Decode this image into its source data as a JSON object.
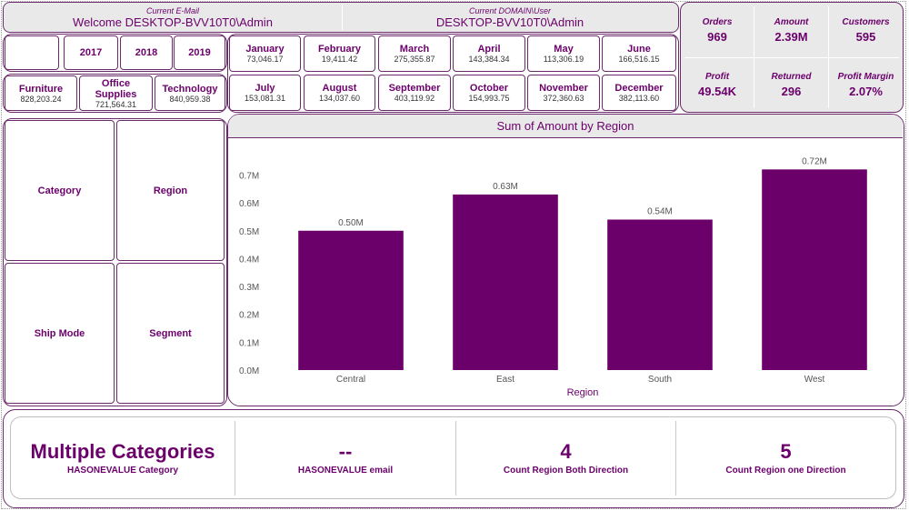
{
  "header": {
    "email_label": "Current E-Mail",
    "email_value": "Welcome DESKTOP-BVV10T0\\Admin",
    "domain_label": "Current DOMAIN\\User",
    "domain_value": "DESKTOP-BVV10T0\\Admin"
  },
  "years": [
    "",
    "2017",
    "2018",
    "2019"
  ],
  "categories": [
    {
      "name": "Furniture",
      "value": "828,203.24"
    },
    {
      "name": "Office Supplies",
      "value": "721,564.31"
    },
    {
      "name": "Technology",
      "value": "840,959.38"
    }
  ],
  "months": [
    {
      "name": "January",
      "value": "73,046.17"
    },
    {
      "name": "February",
      "value": "19,411.42"
    },
    {
      "name": "March",
      "value": "275,355.87"
    },
    {
      "name": "April",
      "value": "143,384.34"
    },
    {
      "name": "May",
      "value": "113,306.19"
    },
    {
      "name": "June",
      "value": "166,516.15"
    },
    {
      "name": "July",
      "value": "153,081.31"
    },
    {
      "name": "August",
      "value": "134,037.60"
    },
    {
      "name": "September",
      "value": "403,119.92"
    },
    {
      "name": "October",
      "value": "154,993.75"
    },
    {
      "name": "November",
      "value": "372,360.63"
    },
    {
      "name": "December",
      "value": "382,113.60"
    }
  ],
  "kpis": [
    {
      "title": "Orders",
      "value": "969"
    },
    {
      "title": "Amount",
      "value": "2.39M"
    },
    {
      "title": "Customers",
      "value": "595"
    },
    {
      "title": "Profit",
      "value": "49.54K"
    },
    {
      "title": "Returned",
      "value": "296"
    },
    {
      "title": "Profit Margin",
      "value": "2.07%"
    }
  ],
  "slicers": [
    "Category",
    "Region",
    "Ship Mode",
    "Segment"
  ],
  "bottom_cards": [
    {
      "value": "Multiple Categories",
      "label": "HASONEVALUE Category"
    },
    {
      "value": "--",
      "label": "HASONEVALUE email"
    },
    {
      "value": "4",
      "label": "Count Region Both Direction"
    },
    {
      "value": "5",
      "label": "Count Region one Direction"
    }
  ],
  "colors": {
    "accent": "#6b006b",
    "bar": "#6b006b",
    "border": "#6b2a6b",
    "panel": "#e9e9ea"
  },
  "chart_data": {
    "type": "bar",
    "title": "Sum of Amount by Region",
    "xlabel": "Region",
    "ylabel": "",
    "categories": [
      "Central",
      "East",
      "South",
      "West"
    ],
    "values": [
      0.5,
      0.63,
      0.54,
      0.72
    ],
    "data_labels": [
      "0.50M",
      "0.63M",
      "0.54M",
      "0.72M"
    ],
    "yticks": [
      "0.0M",
      "0.1M",
      "0.2M",
      "0.3M",
      "0.4M",
      "0.5M",
      "0.6M",
      "0.7M"
    ],
    "ylim": [
      0,
      0.77
    ],
    "grid": false
  }
}
